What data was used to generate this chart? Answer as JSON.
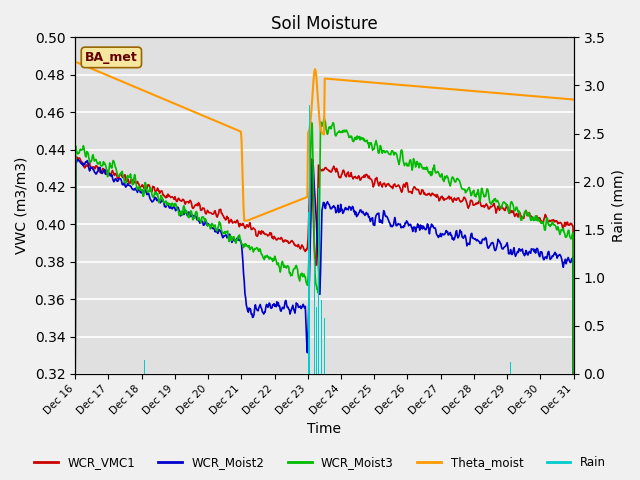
{
  "title": "Soil Moisture",
  "xlabel": "Time",
  "ylabel_left": "VWC (m3/m3)",
  "ylabel_right": "Rain (mm)",
  "ylim_left": [
    0.32,
    0.5
  ],
  "ylim_right": [
    0.0,
    3.5
  ],
  "xtick_labels": [
    "Dec 16",
    "Dec 17",
    "Dec 18",
    "Dec 19",
    "Dec 20",
    "Dec 21",
    "Dec 22",
    "Dec 23",
    "Dec 24",
    "Dec 25",
    "Dec 26",
    "Dec 27",
    "Dec 28",
    "Dec 29",
    "Dec 30",
    "Dec 31"
  ],
  "colors": {
    "WCR_VMC1": "#cc0000",
    "WCR_Moist2": "#0000cc",
    "WCR_Moist3": "#00bb00",
    "Theta_moist": "#ff9900",
    "Rain": "#00cccc"
  },
  "legend_label": "BA_met",
  "fig_facecolor": "#f0f0f0",
  "plot_bg_color": "#e0e0e0",
  "grid_color": "#ffffff"
}
